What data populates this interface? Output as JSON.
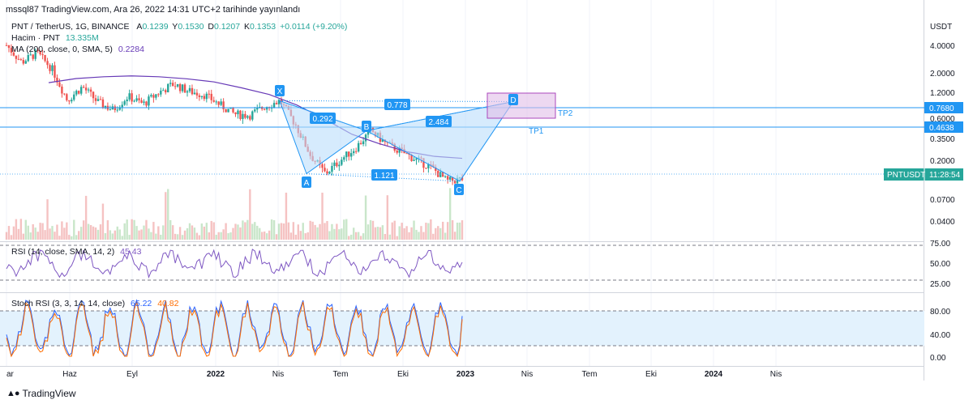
{
  "header": {
    "published": "mssql87 TradingView.com, Ara 26, 2022 14:31 UTC+2 tarihinde yayınlandı"
  },
  "legend": {
    "symbol": "PNT / TetherUS, 1G, BINANCE",
    "open_label": "A",
    "open": "0.1239",
    "high_label": "Y",
    "high": "0.1530",
    "low_label": "D",
    "low": "0.1207",
    "close_label": "K",
    "close": "0.1353",
    "change": "+0.0114 (+9.20%)",
    "volume_label": "Hacim · PNT",
    "volume": "13.335M",
    "ma_label": "MA (200, close, 0, SMA, 5)",
    "ma": "0.2284",
    "rsi_label": "RSI (14, close, SMA, 14, 2)",
    "rsi": "45.43",
    "stoch_label": "Stoch RSI (3, 3, 14, 14, close)",
    "stoch_k": "65.22",
    "stoch_d": "40.82"
  },
  "price_axis": {
    "currency": "USDT",
    "ticks": [
      "4.0000",
      "2.0000",
      "1.2000",
      "0.6000",
      "0.3500",
      "0.2000",
      "0.0700",
      "0.0400"
    ],
    "marked_levels": [
      {
        "value": "0.7680",
        "color": "#2196f3"
      },
      {
        "value": "0.4638",
        "color": "#2196f3"
      }
    ],
    "ticker_badge": {
      "symbol": "PNTUSDT",
      "countdown": "11:28:54",
      "color": "#26a69a"
    }
  },
  "rsi_axis": {
    "ticks": [
      "75.00",
      "50.00",
      "25.00"
    ]
  },
  "stoch_axis": {
    "ticks": [
      "80.00",
      "40.00",
      "0.00"
    ]
  },
  "time_axis": {
    "ticks": [
      "ar",
      "Haz",
      "Eyl",
      "2022",
      "Nis",
      "Tem",
      "Eki",
      "2023",
      "Nis",
      "Tem",
      "Eki",
      "2024",
      "Nis"
    ]
  },
  "pattern": {
    "points": [
      {
        "label": "X",
        "value": 0.98
      },
      {
        "label": "A",
        "value": 0.155
      },
      {
        "label": "B",
        "value": 0.46
      },
      {
        "label": "C",
        "value": 0.128
      },
      {
        "label": "D",
        "value": 0.96
      }
    ],
    "ratios": [
      "0.292",
      "0.778",
      "2.484",
      "1.121"
    ],
    "targets": [
      "TP1",
      "TP2"
    ],
    "colors": {
      "fill": "#bbdefb",
      "stroke": "#2196f3",
      "box": "#e1bee7",
      "box_stroke": "#ab47bc"
    }
  },
  "chart_data": {
    "type": "line",
    "title": "PNT / TetherUS, 1G, BINANCE",
    "y_scale": "log",
    "ylim": [
      0.033,
      8.0
    ],
    "series": [
      {
        "name": "MA (200, close, 0, SMA, 5)",
        "color": "#673ab7",
        "values": [
          1.55,
          1.72,
          1.8,
          1.84,
          1.8,
          1.71,
          1.58,
          1.36,
          1.15,
          0.88,
          0.62,
          0.42,
          0.33,
          0.27,
          0.24,
          0.2284
        ]
      }
    ],
    "price_path": [
      4.0,
      2.6,
      3.3,
      2.2,
      1.0,
      1.4,
      0.95,
      0.78,
      1.1,
      0.9,
      1.2,
      1.5,
      1.25,
      1.15,
      0.9,
      0.7,
      0.68,
      0.85,
      0.98,
      0.55,
      0.25,
      0.155,
      0.22,
      0.3,
      0.46,
      0.33,
      0.27,
      0.22,
      0.18,
      0.128,
      0.1353
    ],
    "rsi_levels": [
      70,
      30
    ],
    "stoch_levels": [
      80,
      20
    ],
    "grid": true
  }
}
